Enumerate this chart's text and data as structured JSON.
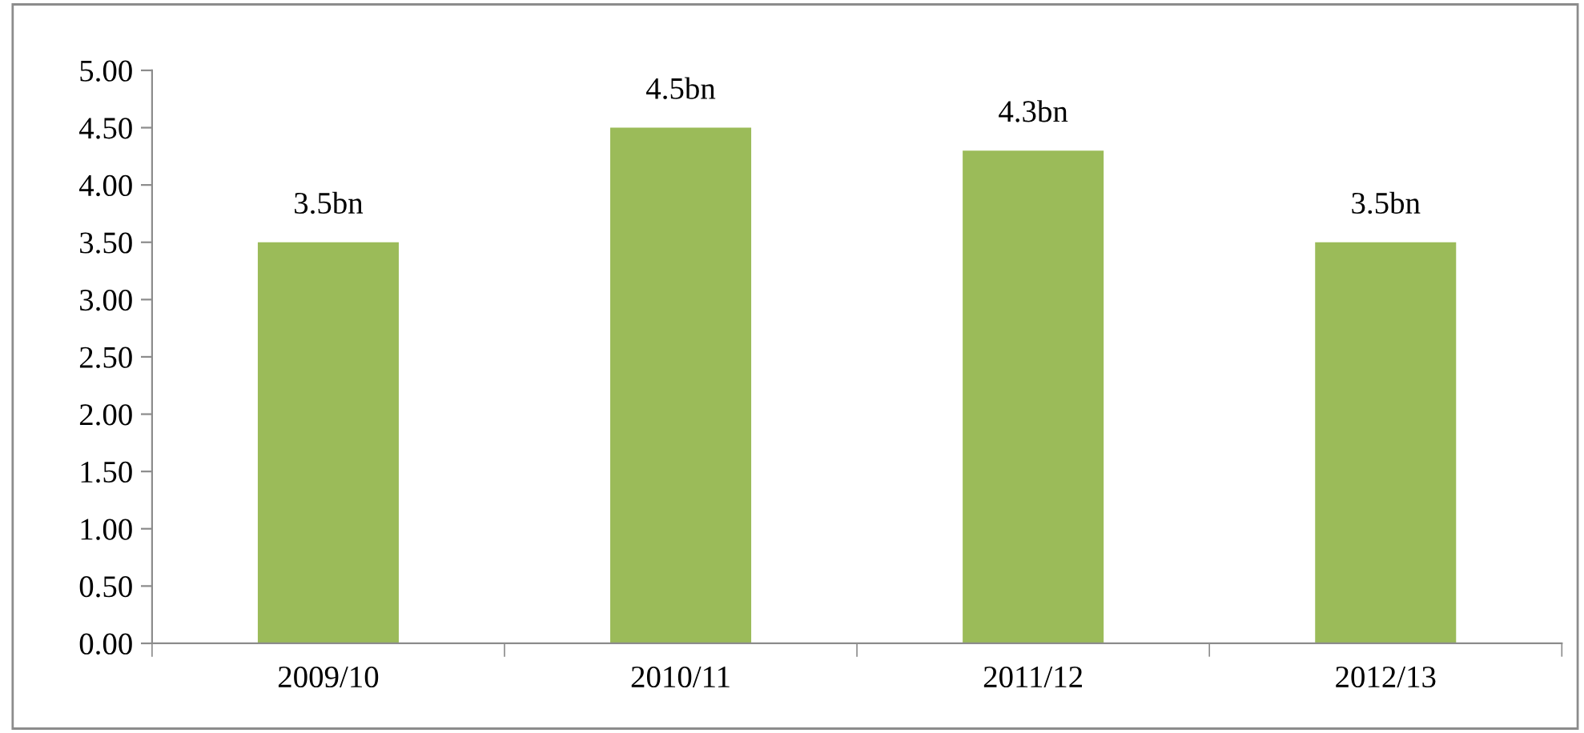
{
  "chart_data": {
    "type": "bar",
    "categories": [
      "2009/10",
      "2010/11",
      "2011/12",
      "2012/13"
    ],
    "values": [
      3.5,
      4.5,
      4.3,
      3.5
    ],
    "value_labels": [
      "3.5bn",
      "4.5bn",
      "4.3bn",
      "3.5bn"
    ],
    "color": "#9bbb59",
    "ylim": [
      0,
      5
    ],
    "yticks": [
      {
        "value": 0,
        "label": "0.00"
      },
      {
        "value": 0.5,
        "label": "0.50"
      },
      {
        "value": 1,
        "label": "1.00"
      },
      {
        "value": 1.5,
        "label": "1.50"
      },
      {
        "value": 2,
        "label": "2.00"
      },
      {
        "value": 2.5,
        "label": "2.50"
      },
      {
        "value": 3,
        "label": "3.00"
      },
      {
        "value": 3.5,
        "label": "3.50"
      },
      {
        "value": 4,
        "label": "4.00"
      },
      {
        "value": 4.5,
        "label": "4.50"
      },
      {
        "value": 5,
        "label": "5.00"
      }
    ],
    "grid": false
  }
}
